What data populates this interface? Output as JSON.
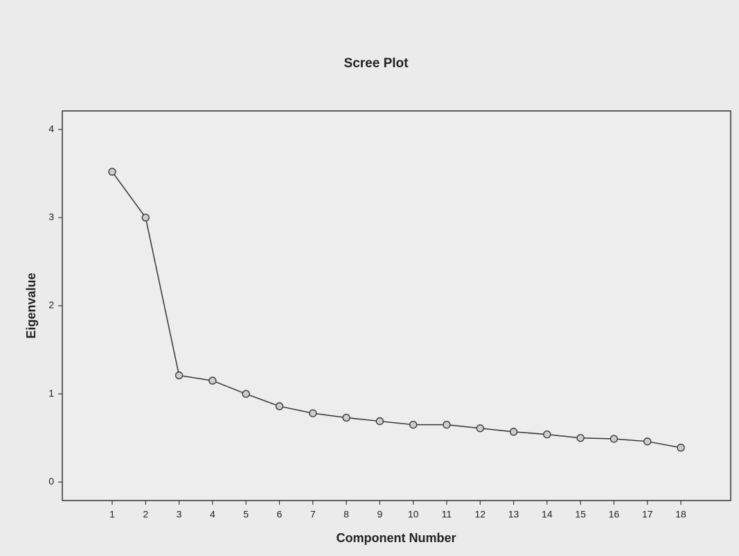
{
  "chart_data": {
    "type": "line",
    "title": "Scree Plot",
    "xlabel": "Component Number",
    "ylabel": "Eigenvalue",
    "x": [
      1,
      2,
      3,
      4,
      5,
      6,
      7,
      8,
      9,
      10,
      11,
      12,
      13,
      14,
      15,
      16,
      17,
      18
    ],
    "series": [
      {
        "name": "Eigenvalue",
        "color": "#333333",
        "values": [
          3.52,
          3.0,
          1.21,
          1.15,
          1.0,
          0.86,
          0.78,
          0.73,
          0.69,
          0.65,
          0.65,
          0.61,
          0.57,
          0.54,
          0.5,
          0.49,
          0.46,
          0.39
        ]
      }
    ],
    "xlim": [
      -0.49,
      19.49
    ],
    "xticks": [
      1,
      2,
      3,
      4,
      5,
      6,
      7,
      8,
      9,
      10,
      11,
      12,
      13,
      14,
      15,
      16,
      17,
      18
    ],
    "ylim": [
      -0.21,
      4.21
    ],
    "yticks": [
      0,
      1,
      2,
      3,
      4
    ],
    "grid": false
  }
}
